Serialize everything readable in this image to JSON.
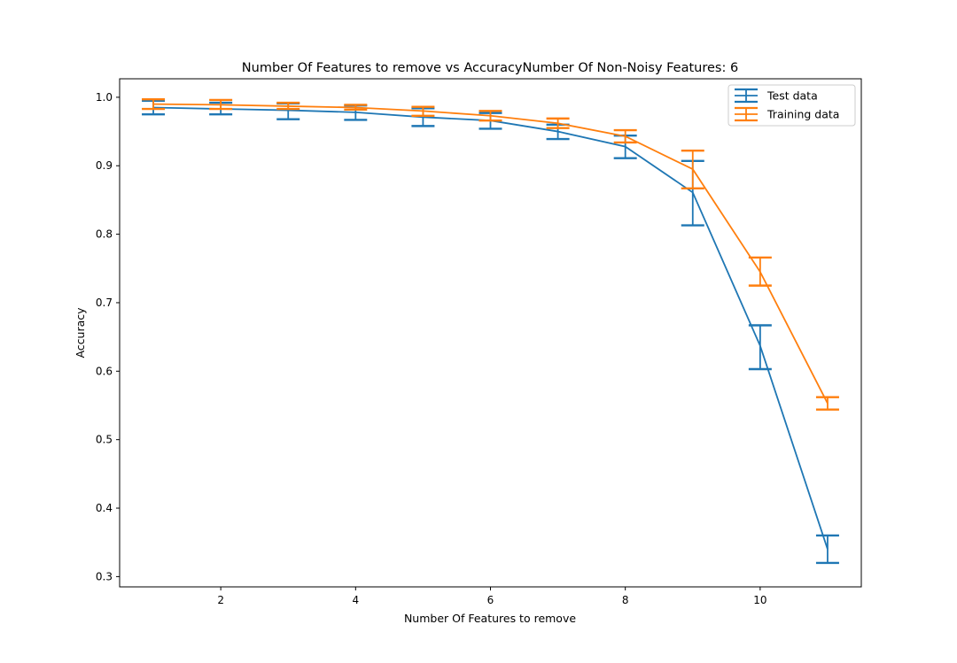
{
  "chart_data": {
    "type": "line",
    "title": "Number Of Features to remove vs AccuracyNumber Of Non-Noisy Features: 6",
    "xlabel": "Number Of Features to remove",
    "ylabel": "Accuracy",
    "xlim": [
      0.5,
      11.5
    ],
    "ylim": [
      0.285,
      1.027
    ],
    "xticks": [
      2,
      4,
      6,
      8,
      10
    ],
    "xtick_labels": [
      "2",
      "4",
      "6",
      "8",
      "10"
    ],
    "yticks": [
      0.3,
      0.4,
      0.5,
      0.6,
      0.7,
      0.8,
      0.9,
      1.0
    ],
    "ytick_labels": [
      "0.3",
      "0.4",
      "0.5",
      "0.6",
      "0.7",
      "0.8",
      "0.9",
      "1.0"
    ],
    "grid": false,
    "legend_position": "top-right",
    "x": [
      1,
      2,
      3,
      4,
      5,
      6,
      7,
      8,
      9,
      10,
      11
    ],
    "series": [
      {
        "name": "Test data",
        "color": "#1f77b4",
        "values": [
          0.985,
          0.983,
          0.981,
          0.978,
          0.971,
          0.966,
          0.95,
          0.928,
          0.861,
          0.637,
          0.34
        ],
        "err_low": [
          0.975,
          0.975,
          0.968,
          0.967,
          0.958,
          0.954,
          0.939,
          0.911,
          0.813,
          0.603,
          0.32
        ],
        "err_high": [
          0.995,
          0.992,
          0.991,
          0.988,
          0.984,
          0.977,
          0.96,
          0.944,
          0.907,
          0.667,
          0.36
        ]
      },
      {
        "name": "Training data",
        "color": "#ff7f0e",
        "values": [
          0.99,
          0.989,
          0.987,
          0.985,
          0.98,
          0.973,
          0.962,
          0.943,
          0.895,
          0.745,
          0.553
        ],
        "err_low": [
          0.983,
          0.983,
          0.983,
          0.982,
          0.973,
          0.966,
          0.955,
          0.934,
          0.867,
          0.725,
          0.544
        ],
        "err_high": [
          0.997,
          0.996,
          0.992,
          0.989,
          0.986,
          0.98,
          0.969,
          0.952,
          0.922,
          0.766,
          0.562
        ]
      }
    ]
  }
}
